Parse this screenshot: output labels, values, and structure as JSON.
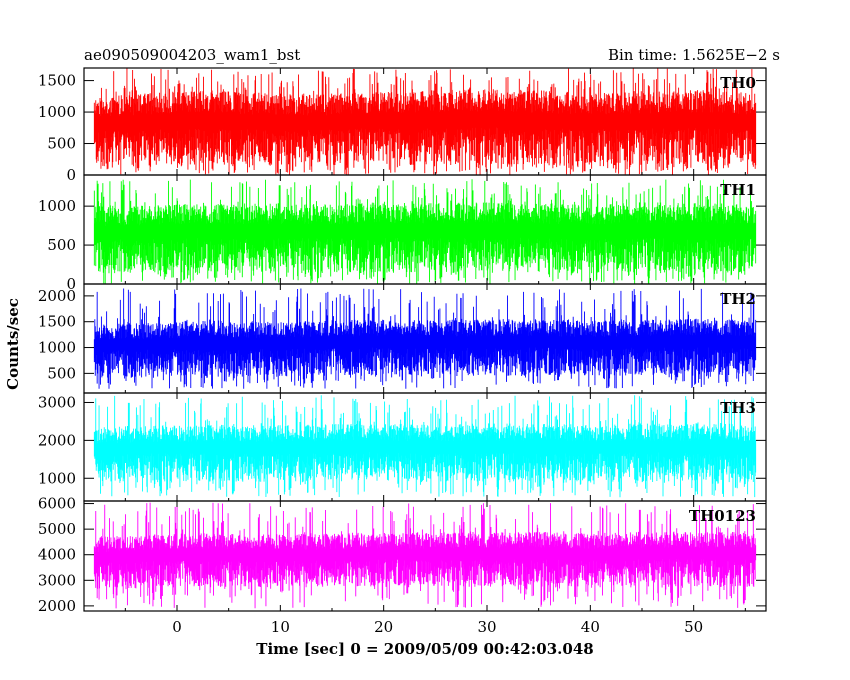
{
  "header": {
    "title": "ae090509004203_wam1_bst",
    "bin_time": "Bin time: 1.5625E−2 s"
  },
  "chart_data": {
    "type": "line",
    "ylabel": "Counts/sec",
    "xlabel": "Time [sec] 0 = 2009/05/09 00:42:03.048",
    "xlim": [
      -9,
      57
    ],
    "data_x_range": [
      -8,
      56
    ],
    "x_ticks": [
      0,
      10,
      20,
      30,
      40,
      50
    ],
    "panels": [
      {
        "name": "TH0",
        "color": "#ff0000",
        "ylim": [
          0,
          1700
        ],
        "y_ticks": [
          0,
          500,
          1000,
          1500
        ],
        "y_tick_labels": [
          "0",
          "500",
          "1000",
          "1500"
        ],
        "band_low": [
          130,
          150,
          160,
          140,
          150,
          170,
          160,
          150,
          140,
          150,
          160,
          150,
          140
        ],
        "band_high": [
          1250,
          1300,
          1350,
          1300,
          1280,
          1320,
          1350,
          1380,
          1350,
          1300,
          1320,
          1350,
          1300
        ],
        "min": 0,
        "max": 1700
      },
      {
        "name": "TH1",
        "color": "#00ff00",
        "ylim": [
          0,
          1400
        ],
        "y_ticks": [
          0,
          500,
          1000
        ],
        "y_tick_labels": [
          "0",
          "500",
          "1000"
        ],
        "band_low": [
          130,
          140,
          150,
          140,
          150,
          140,
          150,
          140,
          150,
          140,
          150,
          140,
          140
        ],
        "band_high": [
          1000,
          1020,
          1030,
          1040,
          1030,
          1050,
          1040,
          1050,
          1040,
          1030,
          1050,
          1040,
          1030
        ],
        "min": 0,
        "max": 1350
      },
      {
        "name": "TH2",
        "color": "#0000ff",
        "ylim": [
          120,
          2230
        ],
        "y_ticks": [
          500,
          1000,
          1500,
          2000
        ],
        "y_tick_labels": [
          "500",
          "1000",
          "1500",
          "2000"
        ],
        "band_low": [
          420,
          440,
          450,
          440,
          450,
          460,
          450,
          440,
          450,
          440,
          460,
          450,
          450
        ],
        "band_high": [
          1450,
          1480,
          1520,
          1500,
          1520,
          1550,
          1530,
          1550,
          1560,
          1520,
          1550,
          1560,
          1540
        ],
        "min": 200,
        "max": 2150
      },
      {
        "name": "TH3",
        "color": "#00ffff",
        "ylim": [
          400,
          3250
        ],
        "y_ticks": [
          1000,
          2000,
          3000
        ],
        "y_tick_labels": [
          "1000",
          "2000",
          "3000"
        ],
        "band_low": [
          880,
          900,
          920,
          900,
          910,
          930,
          920,
          910,
          920,
          900,
          930,
          920,
          910
        ],
        "band_high": [
          2350,
          2400,
          2420,
          2400,
          2420,
          2450,
          2430,
          2450,
          2440,
          2420,
          2450,
          2440,
          2420
        ],
        "min": 500,
        "max": 3200
      },
      {
        "name": "TH0123",
        "color": "#ff00ff",
        "ylim": [
          1800,
          6100
        ],
        "y_ticks": [
          2000,
          3000,
          4000,
          5000,
          6000
        ],
        "y_tick_labels": [
          "2000",
          "3000",
          "4000",
          "5000",
          "6000"
        ],
        "band_low": [
          2650,
          2700,
          2750,
          2700,
          2720,
          2760,
          2750,
          2730,
          2750,
          2720,
          2760,
          2750,
          2740
        ],
        "band_high": [
          4700,
          4800,
          4850,
          4800,
          4820,
          4880,
          4860,
          4900,
          4900,
          4850,
          4900,
          4920,
          4880
        ],
        "min": 1900,
        "max": 6050
      }
    ]
  }
}
